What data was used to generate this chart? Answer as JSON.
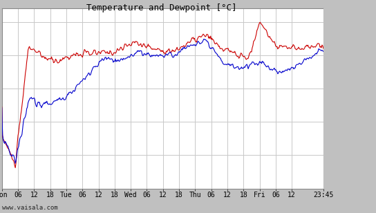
{
  "title": "Temperature and Dewpoint [°C]",
  "ylim": [
    -20,
    7
  ],
  "yticks": [
    -20,
    -15,
    -10,
    -5,
    0,
    5
  ],
  "plot_bg_color": "#ffffff",
  "outer_bg_color": "#c0c0c0",
  "grid_color": "#c8c8c8",
  "temp_color": "#cc0000",
  "dewp_color": "#0000cc",
  "line_width": 0.8,
  "x_tick_labels": [
    "Mon",
    "06",
    "12",
    "18",
    "Tue",
    "06",
    "12",
    "18",
    "Wed",
    "06",
    "12",
    "18",
    "Thu",
    "06",
    "12",
    "18",
    "Fri",
    "06",
    "12",
    "23:45"
  ],
  "x_tick_positions": [
    0,
    6,
    12,
    18,
    24,
    30,
    36,
    42,
    48,
    54,
    60,
    66,
    72,
    78,
    84,
    90,
    96,
    102,
    108,
    119.75
  ],
  "x_max": 119.75,
  "watermark": "www.vaisala.com",
  "font_size_title": 9,
  "font_size_tick": 7,
  "font_size_ytick": 8
}
